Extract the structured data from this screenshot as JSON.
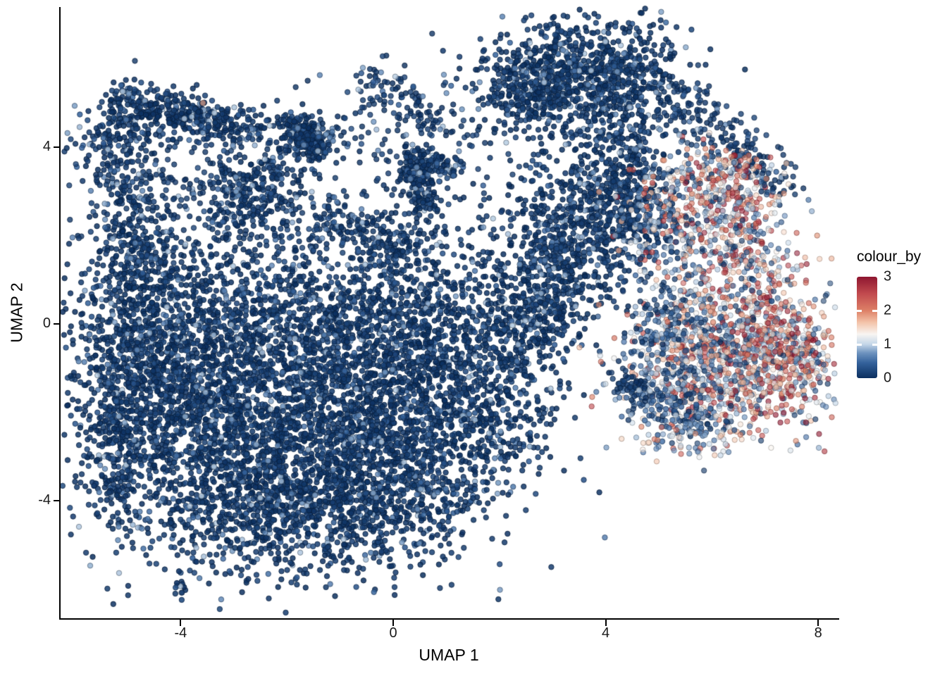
{
  "chart_data": {
    "type": "scatter",
    "title": "",
    "xlabel": "UMAP 1",
    "ylabel": "UMAP 2",
    "xlim": [
      -6.3,
      8.4
    ],
    "ylim": [
      -6.7,
      7.2
    ],
    "x_ticks": [
      -4,
      0,
      4,
      8
    ],
    "y_ticks": [
      4,
      0,
      -4
    ],
    "grid": false,
    "legend": {
      "title": "colour_by",
      "position": "right",
      "range": [
        0,
        3
      ],
      "ticks": [
        3,
        2,
        1,
        0
      ]
    },
    "colormap": {
      "name": "RdBu-reversed",
      "stops": [
        {
          "v": 0.0,
          "color": "#0b2f5f"
        },
        {
          "v": 0.45,
          "color": "#33619b"
        },
        {
          "v": 0.75,
          "color": "#6f94bf"
        },
        {
          "v": 1.0,
          "color": "#c3d6e8"
        },
        {
          "v": 1.3,
          "color": "#f8f5f2"
        },
        {
          "v": 1.65,
          "color": "#f3c3a9"
        },
        {
          "v": 2.0,
          "color": "#dd8066"
        },
        {
          "v": 2.5,
          "color": "#c14a4e"
        },
        {
          "v": 3.0,
          "color": "#8e1630"
        }
      ]
    },
    "point": {
      "radius": 3.7,
      "stroke_darken": 0.62
    },
    "seed": 20240613,
    "clusters": [
      {
        "shape": "line",
        "x1": -5.2,
        "y1": 5.15,
        "x2": -2.55,
        "y2": 4.35,
        "w": 0.22,
        "n": 320,
        "palette": "navy",
        "alpha": 0.85
      },
      {
        "shape": "gauss",
        "x": -4.0,
        "y": 4.55,
        "sx": 0.9,
        "sy": 0.3,
        "n": 150,
        "palette": "navy",
        "alpha": 0.85
      },
      {
        "shape": "gauss",
        "x": -1.62,
        "y": 4.25,
        "sx": 0.3,
        "sy": 0.27,
        "n": 130,
        "palette": "navy",
        "alpha": 0.85
      },
      {
        "shape": "line",
        "x1": -1.92,
        "y1": 4.63,
        "x2": -1.38,
        "y2": 3.92,
        "w": 0.13,
        "n": 150,
        "palette": "navy",
        "alpha": 0.85
      },
      {
        "shape": "line",
        "x1": -5.3,
        "y1": 4.5,
        "x2": -4.75,
        "y2": 1.1,
        "w": 0.42,
        "n": 330,
        "palette": "navy",
        "alpha": 0.85
      },
      {
        "shape": "gauss",
        "x": -4.85,
        "y": 0.2,
        "sx": 0.5,
        "sy": 0.9,
        "n": 220,
        "palette": "navy",
        "alpha": 0.85
      },
      {
        "shape": "gauss",
        "x": -3.5,
        "y": 2.7,
        "sx": 1.05,
        "sy": 0.8,
        "n": 230,
        "palette": "navy",
        "alpha": 0.8
      },
      {
        "shape": "gauss",
        "x": -2.5,
        "y": 2.95,
        "sx": 0.4,
        "sy": 0.5,
        "n": 240,
        "palette": "navy",
        "alpha": 0.85
      },
      {
        "shape": "gauss",
        "x": -2.7,
        "y": 0.05,
        "sx": 1.5,
        "sy": 0.95,
        "n": 650,
        "palette": "navy",
        "alpha": 0.85
      },
      {
        "shape": "gauss",
        "x": -3.35,
        "y": -1.8,
        "sx": 1.55,
        "sy": 1.55,
        "n": 1250,
        "palette": "navy",
        "alpha": 0.85
      },
      {
        "shape": "gauss",
        "x": -1.25,
        "y": -2.55,
        "sx": 1.5,
        "sy": 1.4,
        "n": 1250,
        "palette": "navy",
        "alpha": 0.85
      },
      {
        "shape": "gauss",
        "x": -4.35,
        "y": -1.1,
        "sx": 0.85,
        "sy": 1.5,
        "n": 600,
        "palette": "navy",
        "alpha": 0.85
      },
      {
        "shape": "gauss",
        "x": -2.2,
        "y": -4.05,
        "sx": 1.45,
        "sy": 0.85,
        "n": 800,
        "palette": "navy",
        "alpha": 0.85
      },
      {
        "shape": "gauss",
        "x": 0.2,
        "y": -3.3,
        "sx": 1.0,
        "sy": 1.05,
        "n": 560,
        "palette": "navy",
        "alpha": 0.85
      },
      {
        "shape": "gauss",
        "x": -0.55,
        "y": -0.95,
        "sx": 1.05,
        "sy": 1.0,
        "n": 480,
        "palette": "navy",
        "alpha": 0.85
      },
      {
        "shape": "gauss",
        "x": -5.1,
        "y": -2.2,
        "sx": 0.3,
        "sy": 0.75,
        "n": 160,
        "palette": "navy",
        "alpha": 0.85
      },
      {
        "shape": "gauss",
        "x": -5.3,
        "y": -3.65,
        "sx": 0.22,
        "sy": 0.28,
        "n": 50,
        "palette": "navy",
        "alpha": 0.85
      },
      {
        "shape": "gauss",
        "x": -4.05,
        "y": -5.95,
        "sx": 0.08,
        "sy": 0.14,
        "n": 10,
        "palette": "navy",
        "alpha": 0.9
      },
      {
        "shape": "gauss",
        "x": -3.75,
        "y": -5.35,
        "sx": 0.05,
        "sy": 0.05,
        "n": 2,
        "palette": "navy",
        "alpha": 0.9
      },
      {
        "shape": "gauss",
        "x": 0.0,
        "y": 0.55,
        "sx": 1.15,
        "sy": 1.15,
        "n": 520,
        "palette": "navy",
        "alpha": 0.85
      },
      {
        "shape": "gauss",
        "x": 1.35,
        "y": -0.6,
        "sx": 0.85,
        "sy": 1.15,
        "n": 420,
        "palette": "navy",
        "alpha": 0.85
      },
      {
        "shape": "gauss",
        "x": 1.8,
        "y": -2.0,
        "sx": 0.65,
        "sy": 0.95,
        "n": 280,
        "palette": "navy",
        "alpha": 0.85
      },
      {
        "shape": "line",
        "x1": -1.3,
        "y1": 2.6,
        "x2": 0.4,
        "y2": 1.5,
        "w": 0.35,
        "n": 170,
        "palette": "navy",
        "alpha": 0.82
      },
      {
        "shape": "gauss",
        "x": 0.45,
        "y": 3.55,
        "sx": 0.2,
        "sy": 0.24,
        "n": 120,
        "palette": "navy",
        "alpha": 0.85
      },
      {
        "shape": "line",
        "x1": 0.5,
        "y1": 3.3,
        "x2": 0.62,
        "y2": 2.55,
        "w": 0.18,
        "n": 90,
        "palette": "navy",
        "alpha": 0.85
      },
      {
        "shape": "line",
        "x1": 0.7,
        "y1": 3.75,
        "x2": 1.2,
        "y2": 3.45,
        "w": 0.12,
        "n": 50,
        "palette": "navy",
        "alpha": 0.85
      },
      {
        "shape": "line",
        "x1": -0.52,
        "y1": 5.6,
        "x2": 0.95,
        "y2": 4.5,
        "w": 0.22,
        "n": 90,
        "palette": "navy",
        "alpha": 0.82
      },
      {
        "shape": "gauss",
        "x": 0.15,
        "y": 4.25,
        "sx": 1.15,
        "sy": 0.85,
        "n": 140,
        "palette": "navy",
        "alpha": 0.8
      },
      {
        "shape": "gauss",
        "x": 3.7,
        "y": 5.7,
        "sx": 0.9,
        "sy": 0.72,
        "n": 800,
        "palette": "navy",
        "alpha": 0.85
      },
      {
        "shape": "gauss",
        "x": 2.55,
        "y": 5.35,
        "sx": 0.48,
        "sy": 0.45,
        "n": 240,
        "palette": "navy",
        "alpha": 0.85
      },
      {
        "shape": "gauss",
        "x": 4.35,
        "y": 3.3,
        "sx": 0.5,
        "sy": 1.05,
        "n": 500,
        "palette": "navy",
        "alpha": 0.85
      },
      {
        "shape": "gauss",
        "x": 3.3,
        "y": 2.3,
        "sx": 0.7,
        "sy": 0.8,
        "n": 400,
        "palette": "navy",
        "alpha": 0.85
      },
      {
        "shape": "gauss",
        "x": 3.0,
        "y": 1.05,
        "sx": 0.55,
        "sy": 0.75,
        "n": 300,
        "palette": "navy",
        "alpha": 0.85
      },
      {
        "shape": "gauss",
        "x": 2.6,
        "y": -0.05,
        "sx": 0.45,
        "sy": 0.55,
        "n": 170,
        "palette": "navy",
        "alpha": 0.85
      },
      {
        "shape": "line",
        "x1": 4.85,
        "y1": 5.5,
        "x2": 6.45,
        "y2": 4.05,
        "w": 0.3,
        "n": 150,
        "palette": "navy",
        "alpha": 0.8
      },
      {
        "shape": "line",
        "x1": 6.5,
        "y1": 4.0,
        "x2": 7.35,
        "y2": 2.95,
        "w": 0.25,
        "n": 80,
        "palette": "navy",
        "alpha": 0.78
      },
      {
        "shape": "line",
        "x1": 5.15,
        "y1": 2.15,
        "x2": 5.6,
        "y2": 0.35,
        "w": 0.3,
        "n": 70,
        "palette": "bluemix",
        "alpha": 0.72
      },
      {
        "shape": "gauss",
        "x": 6.15,
        "y": 2.55,
        "sx": 0.62,
        "sy": 0.5,
        "n": 300,
        "palette": "mixed",
        "alpha": 0.62
      },
      {
        "shape": "gauss",
        "x": 6.1,
        "y": 3.5,
        "sx": 0.5,
        "sy": 0.33,
        "n": 140,
        "palette": "mixed",
        "alpha": 0.62
      },
      {
        "shape": "gauss",
        "x": 4.82,
        "y": 2.6,
        "sx": 0.4,
        "sy": 0.5,
        "n": 140,
        "palette": "bluemix",
        "alpha": 0.7
      },
      {
        "shape": "line",
        "x1": 6.55,
        "y1": 2.0,
        "x2": 6.9,
        "y2": 0.95,
        "w": 0.32,
        "n": 90,
        "palette": "mixed",
        "alpha": 0.6
      },
      {
        "shape": "gauss",
        "x": 6.6,
        "y": 1.35,
        "sx": 0.75,
        "sy": 0.5,
        "n": 120,
        "palette": "mixed",
        "alpha": 0.55
      },
      {
        "shape": "gauss",
        "x": 6.5,
        "y": -0.85,
        "sx": 1.0,
        "sy": 0.9,
        "n": 900,
        "palette": "mixed",
        "alpha": 0.62
      },
      {
        "shape": "gauss",
        "x": 7.35,
        "y": -0.7,
        "sx": 0.42,
        "sy": 0.75,
        "n": 280,
        "palette": "warm",
        "alpha": 0.62
      },
      {
        "shape": "gauss",
        "x": 5.5,
        "y": -0.6,
        "sx": 0.55,
        "sy": 0.85,
        "n": 320,
        "palette": "bluemix",
        "alpha": 0.68
      },
      {
        "shape": "gauss",
        "x": 4.9,
        "y": -0.3,
        "sx": 0.3,
        "sy": 0.7,
        "n": 80,
        "palette": "blue",
        "alpha": 0.75
      },
      {
        "shape": "line",
        "x1": 4.55,
        "y1": -1.45,
        "x2": 5.85,
        "y2": -2.35,
        "w": 0.28,
        "n": 170,
        "palette": "blue",
        "alpha": 0.75
      },
      {
        "shape": "gauss",
        "x": 4.42,
        "y": -1.35,
        "sx": 0.22,
        "sy": 0.18,
        "n": 40,
        "palette": "navy",
        "alpha": 0.8
      },
      {
        "shape": "gauss",
        "x": 5.55,
        "y": -2.7,
        "sx": 0.5,
        "sy": 0.18,
        "n": 40,
        "palette": "lightmix",
        "alpha": 0.6
      }
    ],
    "singles": [
      {
        "x": -3.58,
        "y": 5.0,
        "v": 1.8
      },
      {
        "x": 4.55,
        "y": 5.9,
        "v": 0.75
      },
      {
        "x": 7.98,
        "y": 2.0,
        "v": 1.85
      },
      {
        "x": 7.88,
        "y": 2.55,
        "v": 0.85
      },
      {
        "x": 7.6,
        "y": 1.3,
        "v": 1.1
      },
      {
        "x": 4.3,
        "y": -2.6,
        "v": 1.5
      }
    ]
  }
}
